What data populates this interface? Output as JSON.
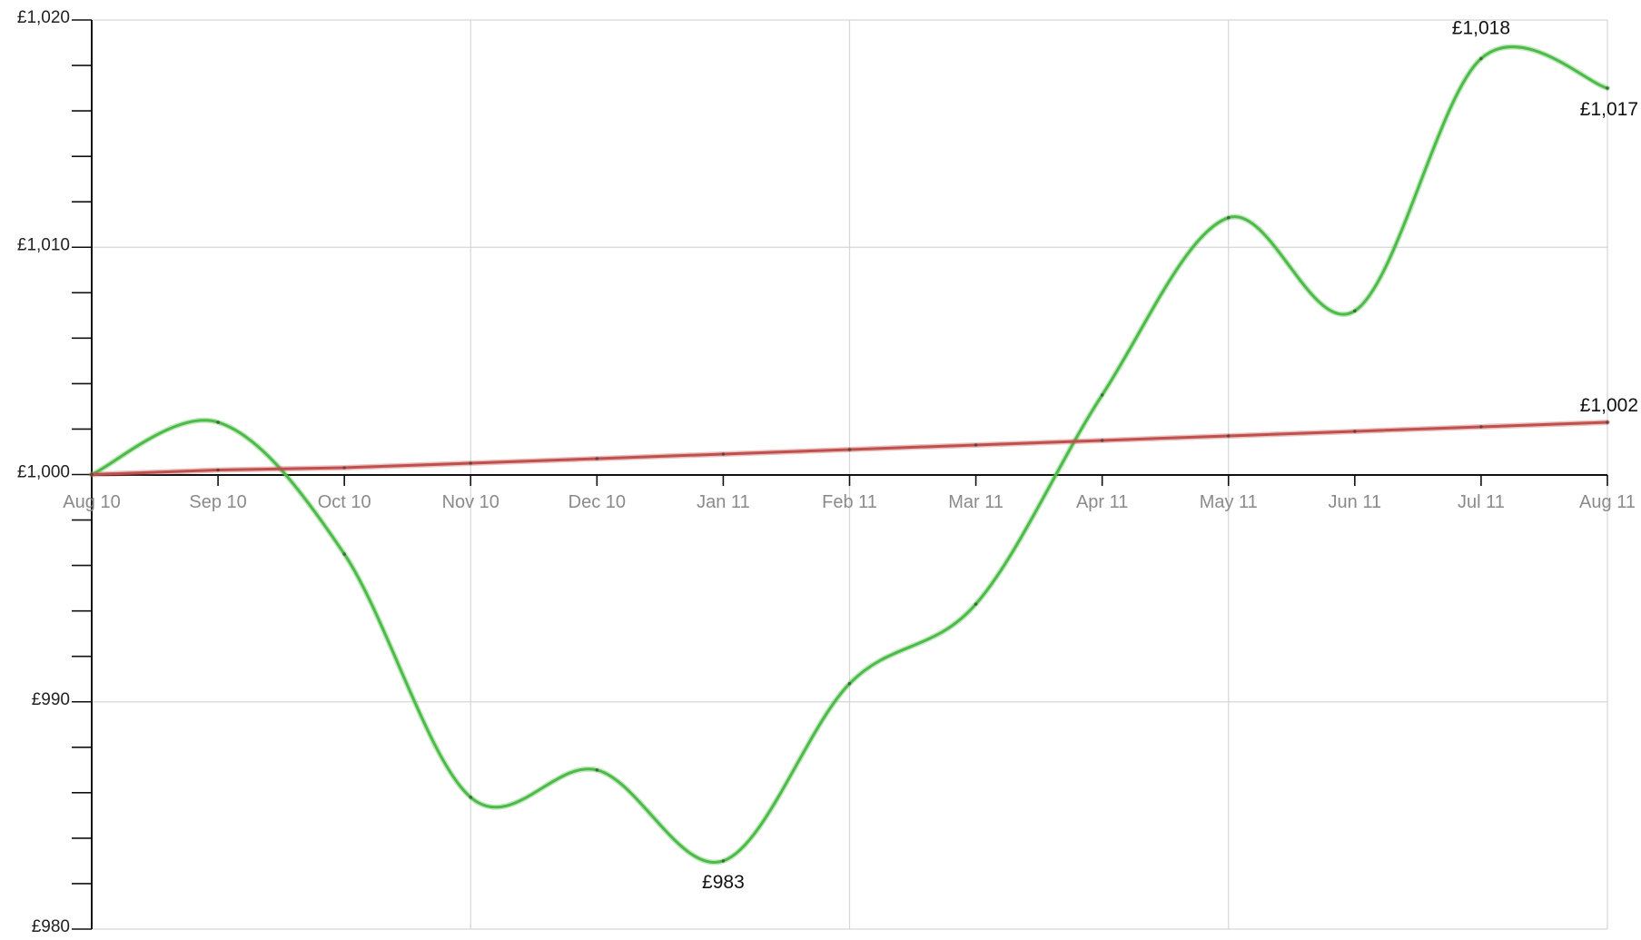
{
  "chart_data": {
    "type": "line",
    "currency_prefix": "£",
    "x": [
      "Aug 10",
      "Sep 10",
      "Oct 10",
      "Nov 10",
      "Dec 10",
      "Jan 11",
      "Feb 11",
      "Mar 11",
      "Apr 11",
      "May 11",
      "Jun 11",
      "Jul 11",
      "Aug 11"
    ],
    "ylim": [
      980,
      1020
    ],
    "y_major_ticks": [
      980,
      990,
      1000,
      1010,
      1020
    ],
    "y_major_labels": [
      "£980",
      "£990",
      "£1,000",
      "£1,010",
      "£1,020"
    ],
    "y_minor_step": 2,
    "grid": true,
    "vertical_grid_at": [
      "Aug 10",
      "Nov 10",
      "Feb 11",
      "May 11",
      "Aug 11"
    ],
    "series": [
      {
        "color": "#4cbb47",
        "smooth": true,
        "values": [
          1000,
          1002.3,
          996.5,
          985.8,
          987,
          983,
          990.8,
          994.3,
          1003.5,
          1011.3,
          1007.2,
          1018.3,
          1017
        ]
      },
      {
        "color": "#c0504d",
        "smooth": false,
        "values": [
          1000,
          1000.2,
          1000.3,
          1000.5,
          1000.7,
          1000.9,
          1001.1,
          1001.3,
          1001.5,
          1001.7,
          1001.9,
          1002.1,
          1002.3
        ]
      }
    ],
    "annotations": [
      {
        "text": "£1,018",
        "x": "Jul 11",
        "y": 1018.9,
        "anchor": "above"
      },
      {
        "text": "£1,017",
        "x": "Aug 11",
        "y": 1017,
        "anchor": "below"
      },
      {
        "text": "£983",
        "x": "Jan 11",
        "y": 983,
        "anchor": "below"
      },
      {
        "text": "£1,002",
        "x": "Aug 11",
        "y": 1002.3,
        "anchor": "above"
      }
    ]
  }
}
